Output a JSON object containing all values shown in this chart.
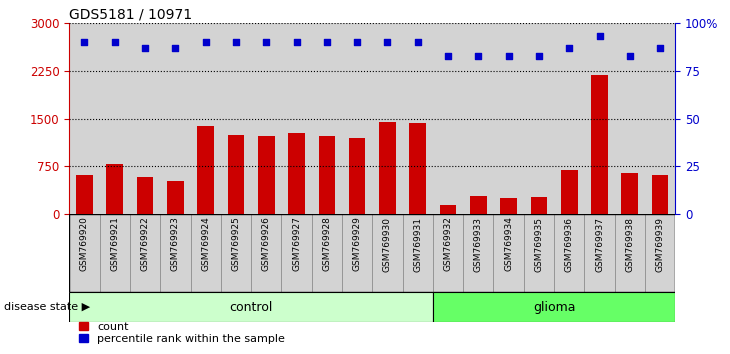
{
  "title": "GDS5181 / 10971",
  "samples": [
    "GSM769920",
    "GSM769921",
    "GSM769922",
    "GSM769923",
    "GSM769924",
    "GSM769925",
    "GSM769926",
    "GSM769927",
    "GSM769928",
    "GSM769929",
    "GSM769930",
    "GSM769931",
    "GSM769932",
    "GSM769933",
    "GSM769934",
    "GSM769935",
    "GSM769936",
    "GSM769937",
    "GSM769938",
    "GSM769939"
  ],
  "counts": [
    620,
    780,
    580,
    520,
    1380,
    1250,
    1220,
    1280,
    1230,
    1200,
    1450,
    1430,
    140,
    280,
    250,
    270,
    700,
    2180,
    640,
    610
  ],
  "percentile_ranks": [
    90,
    90,
    87,
    87,
    90,
    90,
    90,
    90,
    90,
    90,
    90,
    90,
    83,
    83,
    83,
    83,
    87,
    93,
    83,
    87
  ],
  "disease_state": [
    "control",
    "control",
    "control",
    "control",
    "control",
    "control",
    "control",
    "control",
    "control",
    "control",
    "control",
    "control",
    "glioma",
    "glioma",
    "glioma",
    "glioma",
    "glioma",
    "glioma",
    "glioma",
    "glioma"
  ],
  "bar_color": "#cc0000",
  "dot_color": "#0000cc",
  "ylim_left": [
    0,
    3000
  ],
  "ylim_right": [
    0,
    100
  ],
  "yticks_left": [
    0,
    750,
    1500,
    2250,
    3000
  ],
  "yticks_right": [
    0,
    25,
    50,
    75,
    100
  ],
  "grid_values": [
    750,
    1500,
    2250
  ],
  "control_color": "#ccffcc",
  "glioma_color": "#66ff66",
  "bar_bg_color": "#d3d3d3",
  "legend_count_color": "#cc0000",
  "legend_pct_color": "#0000cc"
}
